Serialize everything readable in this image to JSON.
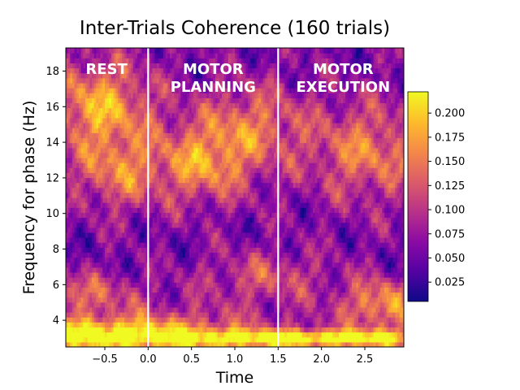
{
  "chart_data": {
    "type": "heatmap",
    "title": "Inter-Trials Coherence (160 trials)",
    "xlabel": "Time",
    "ylabel": "Frequency for phase (Hz)",
    "xlim": [
      -0.95,
      2.95
    ],
    "ylim": [
      2.5,
      19.3
    ],
    "x_ticks": [
      "−0.5",
      "0.0",
      "0.5",
      "1.0",
      "1.5",
      "2.0",
      "2.5"
    ],
    "x_tick_values": [
      -0.5,
      0.0,
      0.5,
      1.0,
      1.5,
      2.0,
      2.5
    ],
    "y_ticks": [
      "4",
      "6",
      "8",
      "10",
      "12",
      "14",
      "16",
      "18"
    ],
    "y_tick_values": [
      4,
      6,
      8,
      10,
      12,
      14,
      16,
      18
    ],
    "colormap": "plasma",
    "colorbar": {
      "range": [
        0.005,
        0.222
      ],
      "ticks": [
        "0.025",
        "0.050",
        "0.075",
        "0.100",
        "0.125",
        "0.150",
        "0.175",
        "0.200"
      ],
      "tick_values": [
        0.025,
        0.05,
        0.075,
        0.1,
        0.125,
        0.15,
        0.175,
        0.2
      ]
    },
    "vlines": [
      0.0,
      1.5
    ],
    "vline_color": "#ffffff",
    "regions": [
      {
        "lines": [
          "REST"
        ],
        "x": -0.48
      },
      {
        "lines": [
          "MOTOR",
          "PLANNING"
        ],
        "x": 0.75
      },
      {
        "lines": [
          "MOTOR",
          "EXECUTION"
        ],
        "x": 2.25
      }
    ],
    "grid": false,
    "hotspots": [
      {
        "t": -0.55,
        "f": 16.0,
        "ft": 1.6,
        "ff": 2.6,
        "v": 0.12
      },
      {
        "t": -0.35,
        "f": 12.2,
        "ft": 2.0,
        "ff": 2.0,
        "v": 0.08
      },
      {
        "t": 0.62,
        "f": 12.8,
        "ft": 1.8,
        "ff": 2.2,
        "v": 0.1
      },
      {
        "t": 1.2,
        "f": 15.0,
        "ft": 1.6,
        "ff": 2.4,
        "v": 0.08
      },
      {
        "t": 1.95,
        "f": 3.0,
        "ft": 0.6,
        "ff": 0.5,
        "v": 0.16
      },
      {
        "t": -0.7,
        "f": 3.2,
        "ft": 1.2,
        "ff": 0.9,
        "v": 0.12
      },
      {
        "t": 2.7,
        "f": 4.9,
        "ft": 2.2,
        "ff": 1.4,
        "v": 0.1
      },
      {
        "t": 2.55,
        "f": 13.5,
        "ft": 1.4,
        "ff": 2.8,
        "v": 0.09
      },
      {
        "t": 0.3,
        "f": 3.3,
        "ft": 1.0,
        "ff": 1.2,
        "v": 0.08
      },
      {
        "t": 1.35,
        "f": 6.5,
        "ft": 1.4,
        "ff": 1.4,
        "v": 0.06
      },
      {
        "t": -0.85,
        "f": 5.5,
        "ft": 1.4,
        "ff": 1.2,
        "v": 0.07
      }
    ]
  }
}
